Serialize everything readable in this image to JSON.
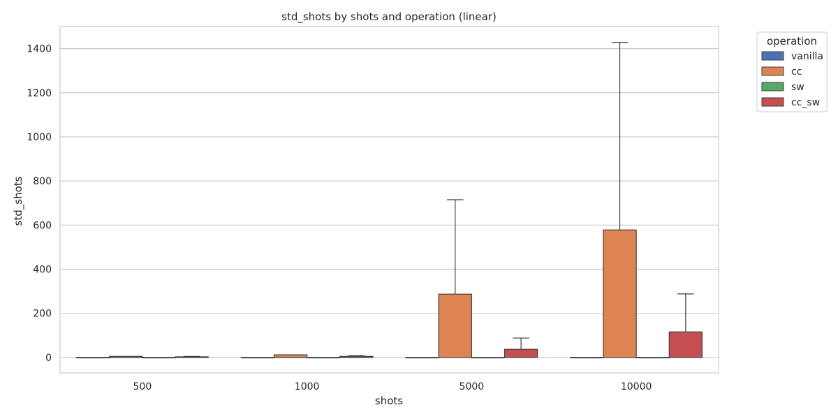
{
  "chart_data": {
    "type": "bar",
    "title": "std_shots by shots and operation (linear)",
    "xlabel": "shots",
    "ylabel": "std_shots",
    "categories": [
      "500",
      "1000",
      "5000",
      "10000"
    ],
    "ylim": [
      -70,
      1500
    ],
    "yticks": [
      0,
      200,
      400,
      600,
      800,
      1000,
      1200,
      1400
    ],
    "grid": "horizontal",
    "legend": {
      "title": "operation",
      "placement": "outside top-right"
    },
    "series": [
      {
        "name": "vanilla",
        "color": "#4c72b0",
        "q1": [
          0,
          0,
          0,
          0
        ],
        "q3": [
          0,
          0,
          0,
          0
        ],
        "median": [
          0,
          0,
          0,
          0
        ],
        "whisker_low": [
          0,
          0,
          0,
          0
        ],
        "whisker_high": [
          0,
          0,
          0,
          0
        ]
      },
      {
        "name": "cc",
        "color": "#dd8452",
        "q1": [
          0,
          0,
          0,
          0
        ],
        "q3": [
          5,
          12,
          287,
          578
        ],
        "median": [
          0,
          0,
          0,
          0
        ],
        "whisker_low": [
          0,
          0,
          0,
          0
        ],
        "whisker_high": [
          5,
          12,
          715,
          1428
        ]
      },
      {
        "name": "sw",
        "color": "#55a868",
        "q1": [
          0,
          0,
          0,
          0
        ],
        "q3": [
          0,
          0,
          0,
          0
        ],
        "median": [
          0,
          0,
          0,
          0
        ],
        "whisker_low": [
          0,
          0,
          0,
          0
        ],
        "whisker_high": [
          0,
          0,
          0,
          0
        ]
      },
      {
        "name": "cc_sw",
        "color": "#c44e52",
        "q1": [
          0,
          0,
          0,
          0
        ],
        "q3": [
          3,
          5,
          37,
          116
        ],
        "median": [
          0,
          0,
          0,
          0
        ],
        "whisker_low": [
          0,
          0,
          0,
          0
        ],
        "whisker_high": [
          5,
          8,
          88,
          288
        ]
      }
    ]
  }
}
